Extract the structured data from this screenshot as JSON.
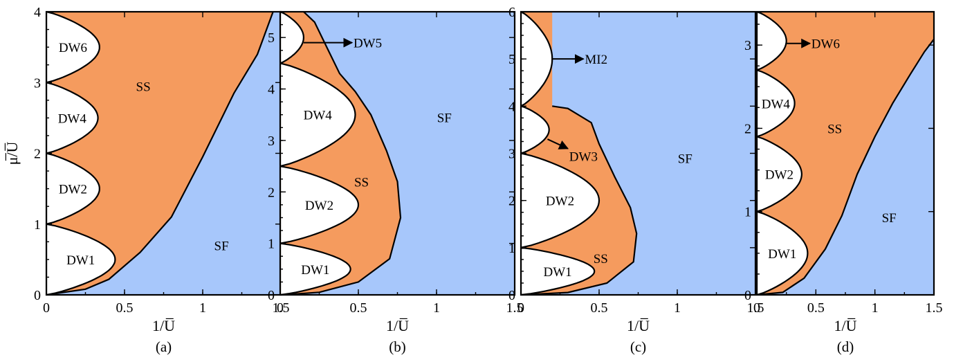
{
  "chart_data": [
    {
      "type": "area",
      "caption": "(a)",
      "xlabel": "1/U̅",
      "ylabel": "μ̅/U̅",
      "xlim": [
        0,
        1.5
      ],
      "ylim": [
        0,
        4
      ],
      "xticks": [
        "0",
        "0.5",
        "1",
        "1.5"
      ],
      "yticks": [
        "0",
        "1",
        "2",
        "3",
        "4"
      ],
      "colors": {
        "SS": "#f59b5e",
        "SF": "#a7c7fb",
        "DW": "#ffffff"
      },
      "lobes": [
        {
          "label": "DW1",
          "y_low": 0,
          "y_high": 1,
          "x_max": 0.44
        },
        {
          "label": "DW2",
          "y_low": 1,
          "y_high": 2,
          "x_max": 0.34
        },
        {
          "label": "DW4",
          "y_low": 2,
          "y_high": 3,
          "x_max": 0.33
        },
        {
          "label": "DW6",
          "y_low": 3,
          "y_high": 4,
          "x_max": 0.34
        }
      ],
      "ss_sf_boundary": [
        [
          0,
          0
        ],
        [
          0.25,
          0.08
        ],
        [
          0.4,
          0.22
        ],
        [
          0.6,
          0.6
        ],
        [
          0.8,
          1.1
        ],
        [
          1.0,
          1.95
        ],
        [
          1.2,
          2.85
        ],
        [
          1.35,
          3.4
        ],
        [
          1.45,
          4.0
        ]
      ],
      "regions": [
        {
          "label": "SS",
          "x": 0.62,
          "y": 2.95
        },
        {
          "label": "SF",
          "x": 1.12,
          "y": 0.7
        }
      ]
    },
    {
      "type": "area",
      "caption": "(b)",
      "xlabel": "1/U̅",
      "ylabel": "",
      "xlim": [
        0,
        1.5
      ],
      "ylim": [
        0,
        5.5
      ],
      "xticks": [
        "0",
        "0.5",
        "1",
        "1.5"
      ],
      "yticks": [
        "0",
        "1",
        "2",
        "3",
        "4",
        "5"
      ],
      "colors": {
        "SS": "#f59b5e",
        "SF": "#a7c7fb",
        "DW": "#ffffff"
      },
      "lobes": [
        {
          "label": "DW1",
          "y_low": 0,
          "y_high": 1,
          "x_max": 0.45
        },
        {
          "label": "DW2",
          "y_low": 1,
          "y_high": 2.5,
          "x_max": 0.5
        },
        {
          "label": "DW4",
          "y_low": 2.5,
          "y_high": 4.5,
          "x_max": 0.48
        },
        {
          "label": "DW5",
          "y_low": 4.5,
          "y_high": 5.5,
          "x_max": 0.15
        }
      ],
      "ss_sf_boundary": [
        [
          0.02,
          0
        ],
        [
          0.25,
          0.05
        ],
        [
          0.5,
          0.25
        ],
        [
          0.7,
          0.7
        ],
        [
          0.77,
          1.5
        ],
        [
          0.75,
          2.2
        ],
        [
          0.68,
          2.8
        ],
        [
          0.58,
          3.5
        ],
        [
          0.48,
          3.95
        ],
        [
          0.38,
          4.3
        ],
        [
          0.3,
          4.8
        ],
        [
          0.22,
          5.3
        ],
        [
          0.15,
          5.5
        ]
      ],
      "regions": [
        {
          "label": "SS",
          "x": 0.52,
          "y": 2.2
        },
        {
          "label": "SF",
          "x": 1.05,
          "y": 3.45
        }
      ],
      "annotations": [
        {
          "label": "DW5",
          "from": [
            0.15,
            4.9
          ],
          "to": [
            0.46,
            4.9
          ]
        }
      ]
    },
    {
      "type": "area",
      "caption": "(c)",
      "xlabel": "1/U̅",
      "ylabel": "",
      "xlim": [
        0,
        1.5
      ],
      "ylim": [
        0,
        6
      ],
      "xticks": [
        "0",
        "0.5",
        "1",
        "1.5"
      ],
      "yticks": [
        "0",
        "1",
        "2",
        "3",
        "4",
        "5",
        "6"
      ],
      "colors": {
        "SS": "#f59b5e",
        "SF": "#a7c7fb",
        "DW": "#ffffff"
      },
      "lobes": [
        {
          "label": "DW1",
          "y_low": 0,
          "y_high": 1,
          "x_max": 0.47
        },
        {
          "label": "DW2",
          "y_low": 1,
          "y_high": 3,
          "x_max": 0.5
        },
        {
          "label": "DW3",
          "y_low": 3,
          "y_high": 4,
          "x_max": 0.18
        },
        {
          "label": "MI2",
          "y_low": 4,
          "y_high": 6,
          "x_max": 0.2
        }
      ],
      "ss_sf_boundary": [
        [
          0,
          0
        ],
        [
          0.3,
          0.05
        ],
        [
          0.55,
          0.25
        ],
        [
          0.72,
          0.7
        ],
        [
          0.74,
          1.3
        ],
        [
          0.7,
          1.85
        ],
        [
          0.6,
          2.5
        ],
        [
          0.5,
          3.2
        ],
        [
          0.45,
          3.65
        ],
        [
          0.3,
          3.95
        ],
        [
          0.2,
          4.0
        ]
      ],
      "regions": [
        {
          "label": "SS",
          "x": 0.51,
          "y": 0.78
        },
        {
          "label": "SF",
          "x": 1.05,
          "y": 2.9
        }
      ],
      "annotations": [
        {
          "label": "MI2",
          "from": [
            0.2,
            5.0
          ],
          "to": [
            0.4,
            5.0
          ]
        },
        {
          "label": "DW3",
          "from": [
            0.17,
            3.3
          ],
          "to": [
            0.3,
            3.1
          ]
        }
      ]
    },
    {
      "type": "area",
      "caption": "(d)",
      "xlabel": "1/U̅",
      "ylabel": "",
      "xlim": [
        0,
        1.5
      ],
      "ylim": [
        0,
        3.4
      ],
      "xticks": [
        "0",
        "0.5",
        "1",
        "1.5"
      ],
      "yticks": [
        "0",
        "1",
        "2",
        "3"
      ],
      "colors": {
        "SS": "#f59b5e",
        "SF": "#a7c7fb",
        "DW": "#ffffff"
      },
      "lobes": [
        {
          "label": "DW1",
          "y_low": 0,
          "y_high": 1,
          "x_max": 0.43
        },
        {
          "label": "DW2",
          "y_low": 1,
          "y_high": 1.9,
          "x_max": 0.38
        },
        {
          "label": "DW4",
          "y_low": 1.9,
          "y_high": 2.7,
          "x_max": 0.32
        },
        {
          "label": "DW6",
          "y_low": 2.7,
          "y_high": 3.4,
          "x_max": 0.25
        }
      ],
      "ss_sf_boundary": [
        [
          0,
          0
        ],
        [
          0.22,
          0.03
        ],
        [
          0.4,
          0.2
        ],
        [
          0.58,
          0.55
        ],
        [
          0.72,
          0.95
        ],
        [
          0.85,
          1.45
        ],
        [
          1.0,
          1.9
        ],
        [
          1.15,
          2.3
        ],
        [
          1.3,
          2.65
        ],
        [
          1.42,
          2.92
        ],
        [
          1.5,
          3.07
        ]
      ],
      "regions": [
        {
          "label": "SS",
          "x": 0.66,
          "y": 2.0
        },
        {
          "label": "SF",
          "x": 1.12,
          "y": 0.93
        }
      ],
      "annotations": [
        {
          "label": "DW6",
          "from": [
            0.25,
            3.02
          ],
          "to": [
            0.45,
            3.02
          ]
        }
      ]
    }
  ]
}
